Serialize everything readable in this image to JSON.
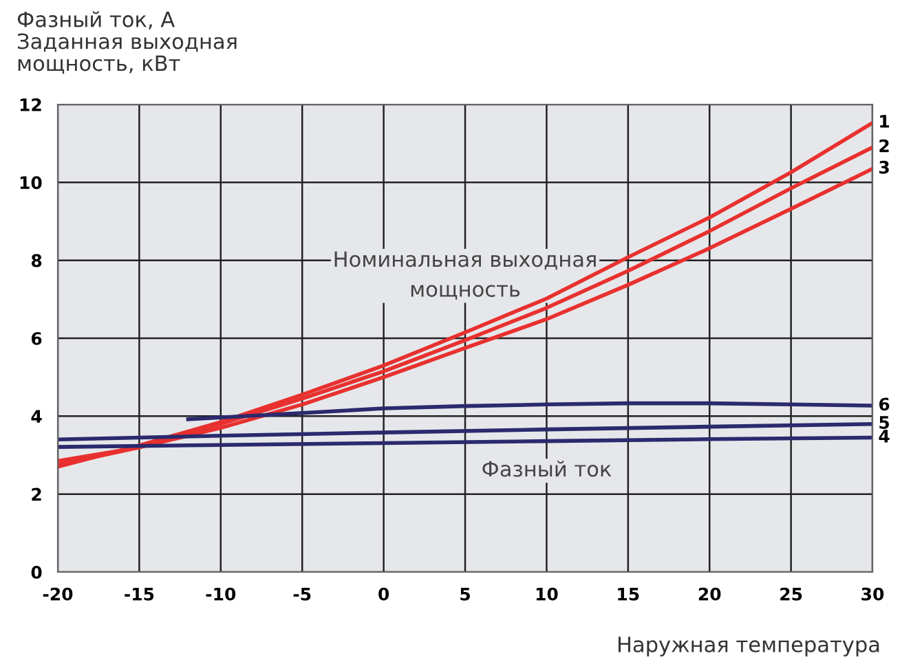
{
  "chart_data": {
    "type": "line",
    "ylabel": "Фазный ток, А\nЗаданная выходная\nмощность, кВт",
    "xlabel": "Наружная температура",
    "annotations": [
      "Номинальная выходная\nмощность",
      "Фазный ток"
    ],
    "xlim": [
      -20,
      30
    ],
    "ylim": [
      0,
      12
    ],
    "xticks": [
      -20,
      -15,
      -10,
      -5,
      0,
      5,
      10,
      15,
      20,
      25,
      30
    ],
    "yticks": [
      0,
      2,
      4,
      6,
      8,
      10,
      12
    ],
    "grid": true,
    "line_style": "solid",
    "marker": "none",
    "series": [
      {
        "name": "1",
        "color": "#e8312f",
        "x": [
          -20,
          -15,
          -10,
          -5,
          0,
          5,
          10,
          15,
          20,
          25,
          30
        ],
        "values": [
          2.7,
          3.25,
          3.85,
          4.55,
          5.3,
          6.15,
          7.02,
          8.08,
          9.1,
          10.26,
          11.53
        ]
      },
      {
        "name": "2",
        "color": "#e8312f",
        "x": [
          -20,
          -15,
          -10,
          -5,
          0,
          5,
          10,
          15,
          20,
          25,
          30
        ],
        "values": [
          2.75,
          3.2,
          3.8,
          4.45,
          5.15,
          5.95,
          6.78,
          7.73,
          8.75,
          9.85,
          10.9
        ]
      },
      {
        "name": "3",
        "color": "#e8312f",
        "x": [
          -20,
          -15,
          -10,
          -5,
          0,
          5,
          10,
          15,
          20,
          25,
          30
        ],
        "values": [
          2.85,
          3.2,
          3.7,
          4.3,
          5.0,
          5.75,
          6.49,
          7.37,
          8.31,
          9.32,
          10.35
        ]
      },
      {
        "name": "4",
        "color": "#2b2a6e",
        "x": [
          -20,
          -10,
          0,
          10,
          20,
          30
        ],
        "values": [
          3.21,
          3.26,
          3.31,
          3.36,
          3.41,
          3.45
        ]
      },
      {
        "name": "5",
        "color": "#2b2a6e",
        "x": [
          -20,
          -10,
          0,
          10,
          20,
          30
        ],
        "values": [
          3.4,
          3.5,
          3.58,
          3.66,
          3.73,
          3.8
        ]
      },
      {
        "name": "6",
        "color": "#2b2a6e",
        "x": [
          -12,
          -5,
          0,
          5,
          10,
          15,
          20,
          25,
          30
        ],
        "values": [
          3.92,
          4.08,
          4.2,
          4.26,
          4.3,
          4.33,
          4.33,
          4.3,
          4.27
        ]
      }
    ]
  }
}
